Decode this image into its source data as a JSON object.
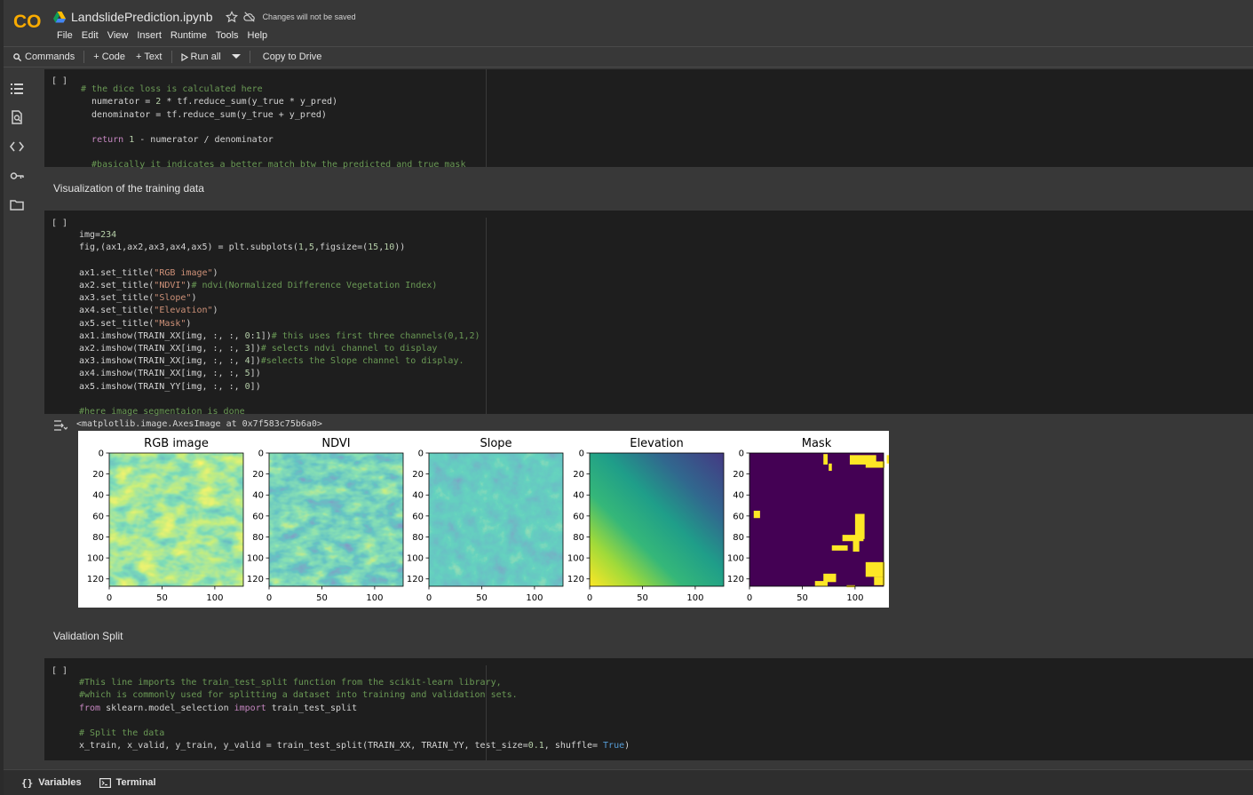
{
  "header": {
    "title": "LandslidePrediction.ipynb",
    "unsaved_notice": "Changes will not be saved",
    "logo_text": "CO"
  },
  "menu": [
    "File",
    "Edit",
    "View",
    "Insert",
    "Runtime",
    "Tools",
    "Help"
  ],
  "toolbar": {
    "commands": "Commands",
    "add_code": "+ Code",
    "add_text": "+ Text",
    "run_all": "Run all",
    "copy_to_drive": "Copy to Drive"
  },
  "rail_icons": [
    "table-of-contents-icon",
    "find-replace-icon",
    "code-snippets-icon",
    "secrets-key-icon",
    "files-folder-icon"
  ],
  "cells": {
    "run_label": "[ ]",
    "cell1_lines": [
      "# the dice loss is calculated here",
      "  numerator = 2 * tf.reduce_sum(y_true * y_pred)",
      "  denominator = tf.reduce_sum(y_true + y_pred)",
      "",
      "  return 1 - numerator / denominator",
      "",
      "  #basically it indicates a better match btw the predicted and true mask"
    ],
    "heading1": "Visualization of the training data",
    "cell2_lines": [
      "img=234",
      "fig,(ax1,ax2,ax3,ax4,ax5) = plt.subplots(1,5,figsize=(15,10))",
      "",
      "ax1.set_title(\"RGB image\")",
      "ax2.set_title(\"NDVI\")# ndvi(Normalized Difference Vegetation Index)",
      "ax3.set_title(\"Slope\")",
      "ax4.set_title(\"Elevation\")",
      "ax5.set_title(\"Mask\")",
      "ax1.imshow(TRAIN_XX[img, :, :, 0:1])# this uses first three channels(0,1,2)",
      "ax2.imshow(TRAIN_XX[img, :, :, 3])# selects ndvi channel to display",
      "ax3.imshow(TRAIN_XX[img, :, :, 4])#selects the Slope channel to display.",
      "ax4.imshow(TRAIN_XX[img, :, :, 5])",
      "ax5.imshow(TRAIN_YY[img, :, :, 0])",
      "",
      "#here image segmentaion is done"
    ],
    "output_repr": "<matplotlib.image.AxesImage at 0x7f583c75b6a0>",
    "heading2": "Validation Split",
    "cell3_lines": [
      "#This line imports the train_test_split function from the scikit-learn library,",
      "#which is commonly used for splitting a dataset into training and validation sets.",
      "from sklearn.model_selection import train_test_split",
      "",
      "# Split the data",
      "x_train, x_valid, y_train, y_valid = train_test_split(TRAIN_XX, TRAIN_YY, test_size=0.1, shuffle= True)"
    ]
  },
  "chart_data": [
    {
      "type": "heatmap",
      "title": "RGB image",
      "colormap": "viridis",
      "x_ticks": [
        0,
        50,
        100
      ],
      "y_ticks": [
        0,
        20,
        40,
        60,
        80,
        100,
        120
      ],
      "xlim": [
        0,
        127
      ],
      "ylim": [
        127,
        0
      ]
    },
    {
      "type": "heatmap",
      "title": "NDVI",
      "colormap": "viridis",
      "x_ticks": [
        0,
        50,
        100
      ],
      "y_ticks": [
        0,
        20,
        40,
        60,
        80,
        100,
        120
      ],
      "xlim": [
        0,
        127
      ],
      "ylim": [
        127,
        0
      ]
    },
    {
      "type": "heatmap",
      "title": "Slope",
      "colormap": "viridis",
      "x_ticks": [
        0,
        50,
        100
      ],
      "y_ticks": [
        0,
        20,
        40,
        60,
        80,
        100,
        120
      ],
      "xlim": [
        0,
        127
      ],
      "ylim": [
        127,
        0
      ]
    },
    {
      "type": "heatmap",
      "title": "Elevation",
      "colormap": "viridis",
      "x_ticks": [
        0,
        50,
        100
      ],
      "y_ticks": [
        0,
        20,
        40,
        60,
        80,
        100,
        120
      ],
      "xlim": [
        0,
        127
      ],
      "ylim": [
        127,
        0
      ]
    },
    {
      "type": "heatmap",
      "title": "Mask",
      "colormap": "viridis",
      "x_ticks": [
        0,
        50,
        100
      ],
      "y_ticks": [
        0,
        20,
        40,
        60,
        80,
        100,
        120
      ],
      "xlim": [
        0,
        127
      ],
      "ylim": [
        127,
        0
      ]
    }
  ],
  "statusbar": {
    "variables": "Variables",
    "terminal": "Terminal"
  }
}
